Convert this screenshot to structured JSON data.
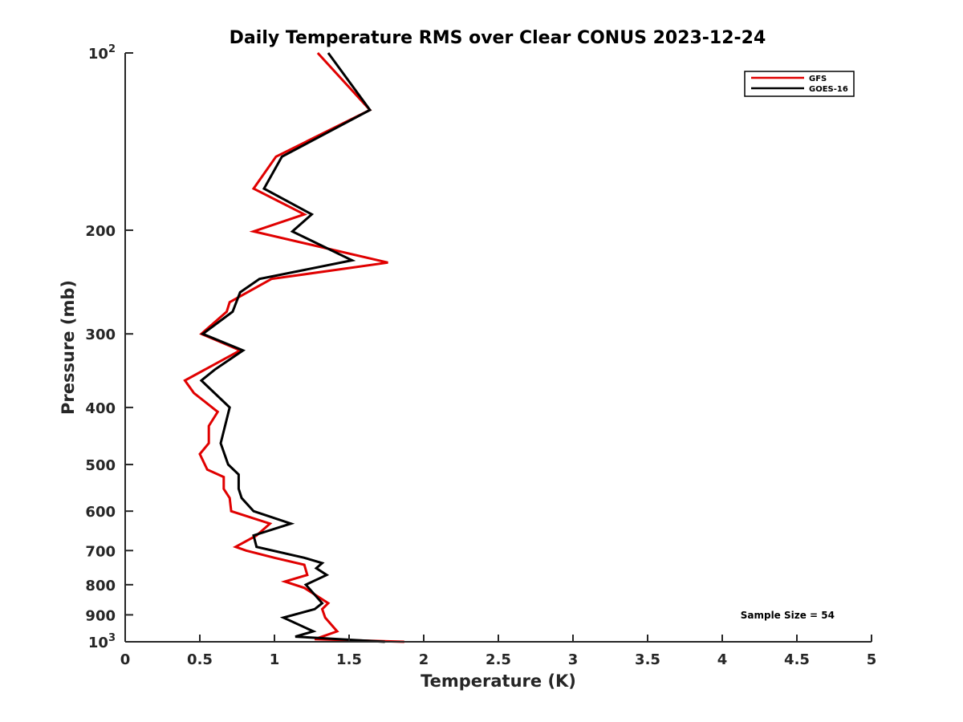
{
  "chart_data": {
    "type": "line",
    "title": "Daily Temperature RMS over Clear CONUS 2023-12-24",
    "xlabel": "Temperature (K)",
    "ylabel": "Pressure (mb)",
    "xlim": [
      0,
      5
    ],
    "ylim": [
      100,
      1000
    ],
    "y_scale": "log",
    "y_reversed": true,
    "grid": false,
    "legend_position": "top-right",
    "x_ticks": [
      "0",
      "0.5",
      "1",
      "1.5",
      "2",
      "2.5",
      "3",
      "3.5",
      "4",
      "4.5",
      "5"
    ],
    "y_ticks": [
      {
        "value": 100,
        "label": "10",
        "exp": "2"
      },
      {
        "value": 200,
        "label": "200",
        "exp": ""
      },
      {
        "value": 300,
        "label": "300",
        "exp": ""
      },
      {
        "value": 400,
        "label": "400",
        "exp": ""
      },
      {
        "value": 500,
        "label": "500",
        "exp": ""
      },
      {
        "value": 600,
        "label": "600",
        "exp": ""
      },
      {
        "value": 700,
        "label": "700",
        "exp": ""
      },
      {
        "value": 800,
        "label": "800",
        "exp": ""
      },
      {
        "value": 900,
        "label": "900",
        "exp": ""
      },
      {
        "value": 1000,
        "label": "10",
        "exp": "3"
      }
    ],
    "annotation": "Sample Size = 54",
    "series": [
      {
        "name": "GFS",
        "color": "#e00000",
        "points": [
          [
            1.29,
            100
          ],
          [
            1.64,
            125
          ],
          [
            1.01,
            150
          ],
          [
            0.86,
            170
          ],
          [
            1.2,
            188
          ],
          [
            0.86,
            201
          ],
          [
            1.76,
            227
          ],
          [
            0.98,
            242
          ],
          [
            0.7,
            265
          ],
          [
            0.68,
            275
          ],
          [
            0.51,
            300
          ],
          [
            0.77,
            320
          ],
          [
            0.4,
            360
          ],
          [
            0.46,
            378
          ],
          [
            0.62,
            407
          ],
          [
            0.56,
            430
          ],
          [
            0.56,
            460
          ],
          [
            0.5,
            480
          ],
          [
            0.55,
            510
          ],
          [
            0.66,
            525
          ],
          [
            0.66,
            550
          ],
          [
            0.7,
            570
          ],
          [
            0.71,
            600
          ],
          [
            0.97,
            630
          ],
          [
            0.88,
            660
          ],
          [
            0.74,
            690
          ],
          [
            0.81,
            700
          ],
          [
            1.0,
            720
          ],
          [
            1.2,
            740
          ],
          [
            1.22,
            770
          ],
          [
            1.07,
            790
          ],
          [
            1.2,
            810
          ],
          [
            1.36,
            860
          ],
          [
            1.32,
            880
          ],
          [
            1.34,
            910
          ],
          [
            1.42,
            960
          ],
          [
            1.27,
            990
          ],
          [
            1.87,
            1000
          ]
        ]
      },
      {
        "name": "GOES-16",
        "color": "#000000",
        "points": [
          [
            1.36,
            100
          ],
          [
            1.64,
            125
          ],
          [
            1.05,
            150
          ],
          [
            0.93,
            170
          ],
          [
            1.25,
            188
          ],
          [
            1.12,
            201
          ],
          [
            1.52,
            225
          ],
          [
            0.9,
            242
          ],
          [
            0.77,
            255
          ],
          [
            0.72,
            275
          ],
          [
            0.52,
            300
          ],
          [
            0.79,
            320
          ],
          [
            0.6,
            345
          ],
          [
            0.51,
            360
          ],
          [
            0.7,
            400
          ],
          [
            0.64,
            460
          ],
          [
            0.69,
            500
          ],
          [
            0.76,
            520
          ],
          [
            0.76,
            550
          ],
          [
            0.78,
            570
          ],
          [
            0.86,
            600
          ],
          [
            1.11,
            630
          ],
          [
            0.86,
            660
          ],
          [
            0.88,
            690
          ],
          [
            1.2,
            720
          ],
          [
            1.32,
            735
          ],
          [
            1.28,
            750
          ],
          [
            1.35,
            770
          ],
          [
            1.21,
            800
          ],
          [
            1.32,
            860
          ],
          [
            1.27,
            880
          ],
          [
            1.06,
            910
          ],
          [
            1.26,
            960
          ],
          [
            1.14,
            980
          ],
          [
            1.74,
            1000
          ]
        ]
      }
    ]
  }
}
